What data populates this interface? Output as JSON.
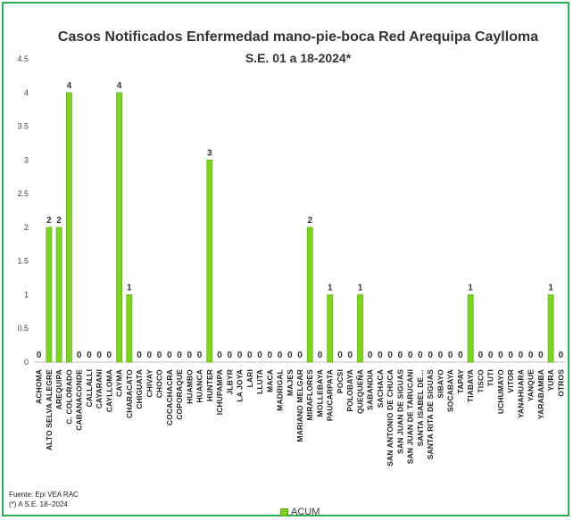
{
  "chart_data": {
    "type": "bar",
    "title": "Casos  Notificados Enfermedad mano-pie-boca Red Arequipa Caylloma",
    "subtitle": "S.E. 01 a 18-2024*",
    "categories": [
      "ACHOMA",
      "ALTO SELVA ALEGRE",
      "AREQUIPA",
      "C. COLORADO",
      "CABANACONDE",
      "CALLALLI",
      "CAYARANI",
      "CAYLLOMA",
      "CAYMA",
      "CHARACATO",
      "CHIGUATA",
      "CHIVAY",
      "CHOCO",
      "COCACHACRA",
      "COPORAQUE",
      "HUAMBO",
      "HUANCA",
      "HUNTER",
      "ICHUPAMPA",
      "JLBYR",
      "LA JOYA",
      "LARI",
      "LLUTA",
      "MACA",
      "MADRIGAL",
      "MAJES",
      "MARIANO MELGAR",
      "MIRAFLORES",
      "MOLLEBAYA",
      "PAUCARPATA",
      "POCSI",
      "POLOBAYA",
      "QUEQUEÑA",
      "SABANDIA",
      "SACHACA",
      "SAN ANTONIO DE CHUCA",
      "SAN JUAN DE SIGUAS",
      "SAN JUAN DE TARUCANI",
      "SANTA ISABEL DE…",
      "SANTA RITA DE SIGUAS",
      "SIBAYO",
      "SOCABAYA",
      "TAPAY",
      "TIABAYA",
      "TISCO",
      "TUTI",
      "UCHUMAYO",
      "VITOR",
      "YANAHUARA",
      "YANQUE",
      "YARABAMBA",
      "YURA",
      "OTROS"
    ],
    "series": [
      {
        "name": "ACUM",
        "values": [
          0,
          2,
          2,
          4,
          0,
          0,
          0,
          0,
          4,
          1,
          0,
          0,
          0,
          0,
          0,
          0,
          0,
          3,
          0,
          0,
          0,
          0,
          0,
          0,
          0,
          0,
          0,
          2,
          0,
          1,
          0,
          0,
          1,
          0,
          0,
          0,
          0,
          0,
          0,
          0,
          0,
          0,
          0,
          1,
          0,
          0,
          0,
          0,
          0,
          0,
          0,
          1,
          0
        ]
      }
    ],
    "data_labels": [
      "0",
      "2",
      "2",
      "4",
      "0",
      "0",
      "0",
      "0",
      "4",
      "1",
      "0",
      "0",
      "0",
      "0",
      "0",
      "0",
      "0",
      "3",
      "0",
      "0",
      "0",
      "0",
      "0",
      "0",
      "0",
      "0",
      "0",
      "2",
      "0",
      "1",
      "0",
      "0",
      "1",
      "0",
      "0",
      "0",
      "0",
      "0",
      "0",
      "0",
      "0",
      "0",
      "0",
      "1",
      "0",
      "0",
      "0",
      "0",
      "0",
      "0",
      "0",
      "1",
      "0"
    ],
    "yticks": [
      "0",
      "0.5",
      "1",
      "1.5",
      "2",
      "2.5",
      "3",
      "3.5",
      "4",
      "4.5"
    ],
    "ylim": [
      0,
      4.5
    ],
    "xlabel": "",
    "ylabel": "",
    "grid": false,
    "legend_position": "bottom",
    "bar_color": "#7ed321",
    "bar_stroke": "#5aa617"
  },
  "source": {
    "line1": "Fuente:  Epi VEA RAC",
    "line2": "(*) A S.E. 18–2024"
  },
  "legend": {
    "label": "ACUM"
  }
}
